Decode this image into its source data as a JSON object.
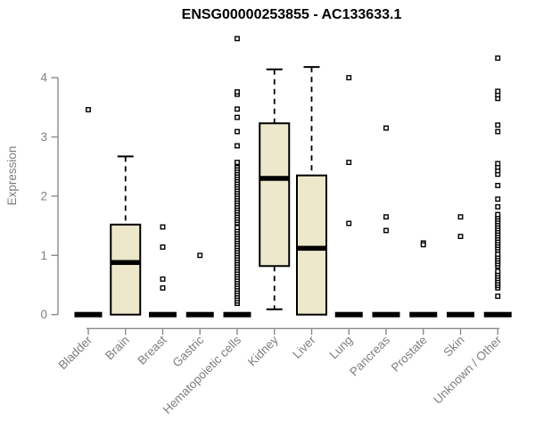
{
  "chart_data": {
    "type": "boxplot",
    "title": "ENSG00000253855 - AC133633.1",
    "ylabel": "Expression",
    "ylim": [
      0,
      4.7
    ],
    "yticks": [
      0,
      1,
      2,
      3,
      4
    ],
    "colors": {
      "box_fill": "#ede7cb",
      "box_stroke": "#000000",
      "axis": "#8a8a8a",
      "tick_label": "#7e7e7e",
      "outlier_fill": "#ffffff"
    },
    "legend": "none",
    "grid": false,
    "categories": [
      {
        "label": "Bladder",
        "zero_bar": true,
        "box": null,
        "outliers": [
          3.46
        ]
      },
      {
        "label": "Brain",
        "zero_bar": false,
        "box": {
          "q1": 0,
          "median": 0.88,
          "q3": 1.52,
          "whisker_low": 0,
          "whisker_high": 2.67
        },
        "outliers": []
      },
      {
        "label": "Breast",
        "zero_bar": true,
        "box": null,
        "outliers": [
          1.48,
          1.14,
          0.6,
          0.45
        ]
      },
      {
        "label": "Gastric",
        "zero_bar": true,
        "box": null,
        "outliers": [
          1.0
        ]
      },
      {
        "label": "Hematopoietic cells",
        "zero_bar": true,
        "box": null,
        "outliers": [
          0.19,
          0.23,
          0.27,
          0.31,
          0.35,
          0.39,
          0.43,
          0.47,
          0.51,
          0.55,
          0.59,
          0.63,
          0.67,
          0.71,
          0.75,
          0.79,
          0.83,
          0.87,
          0.91,
          0.95,
          0.99,
          1.03,
          1.07,
          1.11,
          1.15,
          1.19,
          1.23,
          1.27,
          1.31,
          1.35,
          1.39,
          1.43,
          1.47,
          1.55,
          1.59,
          1.63,
          1.67,
          1.71,
          1.75,
          1.79,
          1.83,
          1.87,
          1.91,
          1.95,
          1.99,
          2.03,
          2.07,
          2.11,
          2.15,
          2.19,
          2.23,
          2.27,
          2.31,
          2.35,
          2.39,
          2.43,
          2.47,
          2.51,
          2.55,
          2.57,
          2.85,
          3.09,
          3.33,
          3.47,
          3.72,
          3.76,
          4.66
        ]
      },
      {
        "label": "Kidney",
        "zero_bar": false,
        "box": {
          "q1": 0.82,
          "median": 2.3,
          "q3": 3.23,
          "whisker_low": 0.09,
          "whisker_high": 4.14
        },
        "outliers": []
      },
      {
        "label": "Liver",
        "zero_bar": false,
        "box": {
          "q1": 0,
          "median": 1.12,
          "q3": 2.35,
          "whisker_low": 0,
          "whisker_high": 4.18
        },
        "outliers": []
      },
      {
        "label": "Lung",
        "zero_bar": true,
        "box": null,
        "outliers": [
          4.0,
          2.57,
          1.54
        ]
      },
      {
        "label": "Pancreas",
        "zero_bar": true,
        "box": null,
        "outliers": [
          3.15,
          1.65,
          1.42
        ]
      },
      {
        "label": "Prostate",
        "zero_bar": true,
        "box": null,
        "outliers": [
          1.21,
          1.18
        ]
      },
      {
        "label": "Skin",
        "zero_bar": true,
        "box": null,
        "outliers": [
          1.65,
          1.32
        ]
      },
      {
        "label": "Unknown / Other",
        "zero_bar": true,
        "box": null,
        "outliers": [
          0.31,
          0.45,
          0.49,
          0.53,
          0.57,
          0.61,
          0.65,
          0.69,
          0.73,
          0.82,
          0.86,
          0.9,
          0.94,
          0.98,
          1.02,
          1.09,
          1.13,
          1.17,
          1.21,
          1.25,
          1.29,
          1.33,
          1.37,
          1.41,
          1.45,
          1.49,
          1.53,
          1.57,
          1.61,
          1.65,
          1.69,
          1.82,
          1.95,
          2.18,
          2.37,
          2.43,
          2.49,
          2.55,
          3.09,
          3.2,
          3.65,
          3.71,
          3.77,
          4.33
        ]
      }
    ]
  }
}
